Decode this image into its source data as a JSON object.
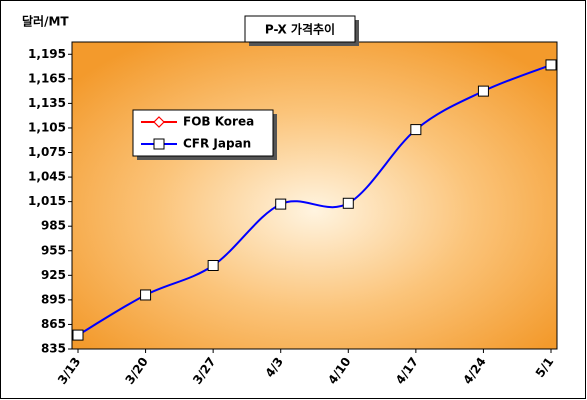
{
  "chart_data": {
    "type": "line",
    "title": "P-X 가격추이",
    "y_label": "달러/MT",
    "categories": [
      "3/13",
      "3/20",
      "3/27",
      "4/3",
      "4/10",
      "4/17",
      "4/24",
      "5/1"
    ],
    "series": [
      {
        "name": "FOB Korea",
        "color": "#ff0000",
        "marker": "diamond",
        "values": [
          null,
          null,
          null,
          null,
          null,
          null,
          null,
          null
        ]
      },
      {
        "name": "CFR Japan",
        "color": "#0000ff",
        "marker": "square",
        "values": [
          852,
          901,
          937,
          1012,
          1013,
          1103,
          1150,
          1182
        ]
      }
    ],
    "ylim": [
      835,
      1210
    ],
    "yticks": [
      835,
      865,
      895,
      925,
      955,
      985,
      {
        "value": 1015,
        "label": "1,015"
      },
      {
        "value": 1045,
        "label": "1,045"
      },
      {
        "value": 1075,
        "label": "1,075"
      },
      {
        "value": 1105,
        "label": "1,105"
      },
      {
        "value": 1135,
        "label": "1,135"
      },
      {
        "value": 1165,
        "label": "1,165"
      },
      {
        "value": 1195,
        "label": "1,195"
      }
    ],
    "grid": false,
    "legend": "upper left"
  }
}
